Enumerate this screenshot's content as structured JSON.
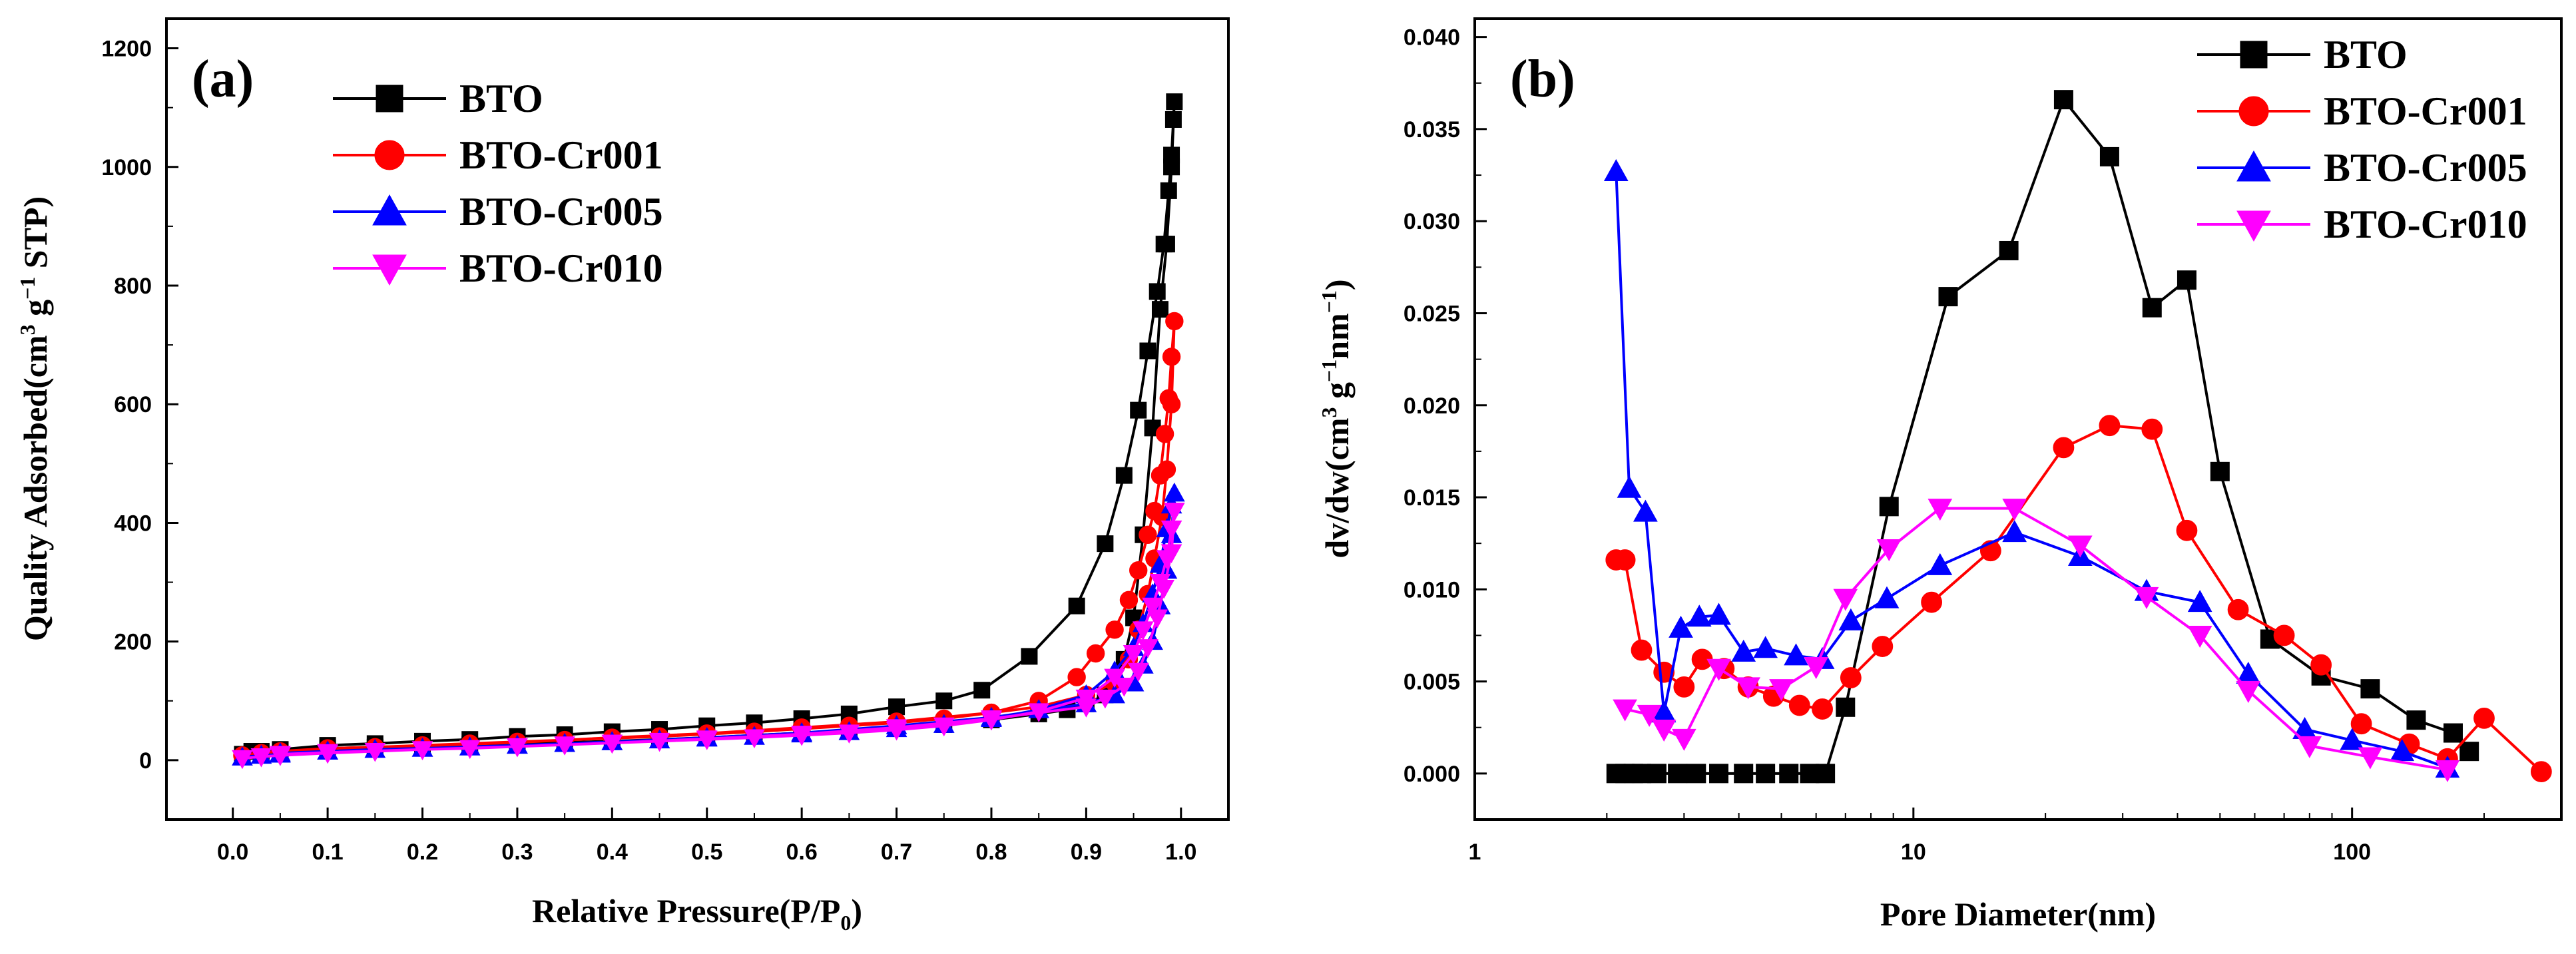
{
  "chart_data": [
    {
      "type": "line",
      "panel_label": "(a)",
      "xlabel": "Relative Pressure(P/P0)",
      "xlabel_main": "Relative Pressure(P/P",
      "xlabel_sub": "0",
      "xlabel_tail": ")",
      "ylabel": "Quality Adsorbed(cm3 g−1 STP)",
      "ylabel_main": "Quality Adsorbed(cm",
      "ylabel_sup1": "3",
      "ylabel_mid": " g",
      "ylabel_sup2": "−1",
      "ylabel_tail": " STP)",
      "xlim": [
        -0.07,
        1.05
      ],
      "ylim": [
        -100,
        1250
      ],
      "xscale": "linear",
      "xticks": [
        0.0,
        0.1,
        0.2,
        0.3,
        0.4,
        0.5,
        0.6,
        0.7,
        0.8,
        0.9,
        1.0
      ],
      "xtick_labels": [
        "0.0",
        "0.1",
        "0.2",
        "0.3",
        "0.4",
        "0.5",
        "0.6",
        "0.7",
        "0.8",
        "0.9",
        "1.0"
      ],
      "yticks": [
        0,
        200,
        400,
        600,
        800,
        1000,
        1200
      ],
      "ytick_labels": [
        "0",
        "200",
        "400",
        "600",
        "800",
        "1000",
        "1200"
      ],
      "legend_position": "top-left",
      "series": [
        {
          "name": "BTO",
          "color": "#000000",
          "marker": "square",
          "x": [
            0.01,
            0.03,
            0.05,
            0.1,
            0.15,
            0.2,
            0.25,
            0.3,
            0.35,
            0.4,
            0.45,
            0.5,
            0.55,
            0.6,
            0.65,
            0.7,
            0.75,
            0.79,
            0.84,
            0.89,
            0.92,
            0.94,
            0.955,
            0.965,
            0.975,
            0.982,
            0.987,
            0.99,
            0.992,
            0.993,
            0.99,
            0.985,
            0.978,
            0.97,
            0.96,
            0.95,
            0.94,
            0.93,
            0.92,
            0.9,
            0.88,
            0.85,
            0.8,
            0.75,
            0.7,
            0.65,
            0.6,
            0.55,
            0.5,
            0.45,
            0.4,
            0.35,
            0.3,
            0.25,
            0.2,
            0.15,
            0.1,
            0.05,
            0.02
          ],
          "y": [
            10,
            15,
            18,
            25,
            28,
            32,
            35,
            40,
            43,
            48,
            52,
            58,
            63,
            70,
            78,
            90,
            100,
            118,
            175,
            260,
            365,
            480,
            590,
            690,
            790,
            870,
            960,
            1020,
            1080,
            1110,
            1000,
            870,
            760,
            560,
            380,
            240,
            170,
            130,
            110,
            95,
            85,
            78,
            68,
            60,
            55,
            50,
            46,
            42,
            38,
            35,
            32,
            30,
            28,
            26,
            24,
            22,
            20,
            18,
            15
          ]
        },
        {
          "name": "BTO-Cr001",
          "color": "#ff0000",
          "marker": "circle",
          "x": [
            0.01,
            0.03,
            0.05,
            0.1,
            0.15,
            0.2,
            0.25,
            0.3,
            0.35,
            0.4,
            0.45,
            0.5,
            0.55,
            0.6,
            0.65,
            0.7,
            0.75,
            0.8,
            0.85,
            0.89,
            0.91,
            0.93,
            0.945,
            0.955,
            0.965,
            0.972,
            0.978,
            0.983,
            0.987,
            0.99,
            0.993,
            0.99,
            0.985,
            0.98,
            0.972,
            0.965,
            0.955,
            0.945,
            0.93,
            0.9,
            0.85,
            0.8,
            0.7,
            0.6,
            0.5,
            0.4,
            0.3,
            0.2,
            0.1,
            0.05
          ],
          "y": [
            8,
            12,
            15,
            20,
            22,
            25,
            28,
            31,
            34,
            37,
            40,
            44,
            48,
            53,
            58,
            63,
            70,
            80,
            100,
            140,
            180,
            220,
            270,
            320,
            380,
            420,
            480,
            550,
            610,
            680,
            740,
            600,
            490,
            410,
            340,
            280,
            220,
            170,
            130,
            110,
            90,
            80,
            65,
            55,
            45,
            38,
            30,
            24,
            18,
            14
          ]
        },
        {
          "name": "BTO-Cr005",
          "color": "#0000ff",
          "marker": "triangle-up",
          "x": [
            0.01,
            0.03,
            0.05,
            0.1,
            0.15,
            0.2,
            0.25,
            0.3,
            0.35,
            0.4,
            0.45,
            0.5,
            0.55,
            0.6,
            0.65,
            0.7,
            0.75,
            0.8,
            0.85,
            0.9,
            0.93,
            0.95,
            0.96,
            0.97,
            0.978,
            0.985,
            0.99,
            0.993,
            0.99,
            0.985,
            0.978,
            0.97,
            0.96,
            0.95,
            0.93,
            0.9,
            0.8,
            0.7,
            0.6,
            0.5,
            0.4,
            0.3,
            0.2,
            0.1,
            0.05
          ],
          "y": [
            5,
            8,
            10,
            15,
            18,
            20,
            22,
            25,
            28,
            31,
            34,
            37,
            40,
            44,
            48,
            53,
            60,
            70,
            85,
            110,
            150,
            190,
            230,
            280,
            330,
            390,
            430,
            450,
            380,
            320,
            260,
            200,
            160,
            130,
            110,
            95,
            72,
            58,
            46,
            38,
            31,
            25,
            20,
            15,
            12
          ]
        },
        {
          "name": "BTO-Cr010",
          "color": "#ff00ff",
          "marker": "triangle-down",
          "x": [
            0.01,
            0.03,
            0.05,
            0.1,
            0.15,
            0.2,
            0.25,
            0.3,
            0.35,
            0.4,
            0.45,
            0.5,
            0.55,
            0.6,
            0.65,
            0.7,
            0.75,
            0.8,
            0.85,
            0.9,
            0.93,
            0.95,
            0.96,
            0.97,
            0.978,
            0.985,
            0.99,
            0.993,
            0.99,
            0.982,
            0.975,
            0.965,
            0.955,
            0.94,
            0.92,
            0.9,
            0.8,
            0.7,
            0.6,
            0.5,
            0.4,
            0.3,
            0.2,
            0.1,
            0.05
          ],
          "y": [
            3,
            6,
            8,
            12,
            15,
            18,
            20,
            23,
            26,
            29,
            32,
            35,
            38,
            42,
            46,
            51,
            58,
            68,
            82,
            105,
            140,
            180,
            220,
            260,
            300,
            340,
            390,
            420,
            350,
            290,
            240,
            190,
            150,
            125,
            105,
            90,
            70,
            55,
            44,
            36,
            29,
            23,
            18,
            13,
            10
          ]
        }
      ]
    },
    {
      "type": "line",
      "panel_label": "(b)",
      "xlabel": "Pore Diameter(nm)",
      "ylabel": "dv/dw(cm3 g−1nm−1)",
      "ylabel_main": "dv/dw(cm",
      "ylabel_sup1": "3",
      "ylabel_mid": " g",
      "ylabel_sup2": "−1",
      "ylabel_mid2": "nm",
      "ylabel_sup3": "−1",
      "ylabel_tail": ")",
      "xscale": "log",
      "xlim": [
        1,
        300
      ],
      "ylim": [
        -0.0025,
        0.041
      ],
      "xticks": [
        1,
        10,
        100
      ],
      "xtick_labels": [
        "1",
        "10",
        "100"
      ],
      "yticks": [
        0.0,
        0.005,
        0.01,
        0.015,
        0.02,
        0.025,
        0.03,
        0.035,
        0.04
      ],
      "ytick_labels": [
        "0.000",
        "0.005",
        "0.010",
        "0.015",
        "0.020",
        "0.025",
        "0.030",
        "0.035",
        "0.040"
      ],
      "legend_position": "top-right",
      "series": [
        {
          "name": "BTO",
          "color": "#000000",
          "marker": "square",
          "x": [
            2.1,
            2.2,
            2.3,
            2.4,
            2.6,
            2.9,
            3.2,
            3.6,
            4.1,
            4.6,
            5.2,
            5.8,
            6.3,
            7.0,
            8.8,
            12,
            16.5,
            22,
            28,
            35,
            42,
            50,
            65,
            85,
            110,
            140,
            170,
            185
          ],
          "y": [
            0,
            0,
            0,
            0,
            0,
            0,
            0,
            0,
            0,
            0,
            0,
            0,
            0,
            0.0036,
            0.0145,
            0.0259,
            0.0284,
            0.0366,
            0.0335,
            0.0253,
            0.0268,
            0.0164,
            0.0073,
            0.0053,
            0.0046,
            0.0029,
            0.0022,
            0.0012
          ]
        },
        {
          "name": "BTO-Cr001",
          "color": "#ff0000",
          "marker": "circle",
          "x": [
            2.1,
            2.2,
            2.4,
            2.7,
            3.0,
            3.3,
            3.7,
            4.2,
            4.8,
            5.5,
            6.2,
            7.2,
            8.5,
            11,
            15,
            22,
            28,
            35,
            42,
            55,
            70,
            85,
            105,
            135,
            165,
            200,
            270
          ],
          "y": [
            0.0116,
            0.0116,
            0.0067,
            0.0055,
            0.0047,
            0.0062,
            0.0057,
            0.0047,
            0.0042,
            0.0037,
            0.0035,
            0.0052,
            0.0069,
            0.0093,
            0.0121,
            0.0177,
            0.0189,
            0.0187,
            0.0132,
            0.0089,
            0.0075,
            0.0059,
            0.0027,
            0.0016,
            0.0008,
            0.003,
            0.0001
          ]
        },
        {
          "name": "BTO-Cr005",
          "color": "#0000ff",
          "marker": "triangle-up",
          "x": [
            2.1,
            2.25,
            2.45,
            2.7,
            2.95,
            3.25,
            3.6,
            4.1,
            4.6,
            5.4,
            6.2,
            7.2,
            8.7,
            11.5,
            17,
            24,
            34,
            45,
            58,
            78,
            100,
            130,
            165
          ],
          "y": [
            0.0327,
            0.0155,
            0.0142,
            0.0033,
            0.0079,
            0.0085,
            0.0086,
            0.0066,
            0.0068,
            0.0064,
            0.0062,
            0.0083,
            0.0095,
            0.0113,
            0.0131,
            0.0118,
            0.0099,
            0.0093,
            0.0054,
            0.0024,
            0.0018,
            0.0012,
            0.0003
          ]
        },
        {
          "name": "BTO-Cr010",
          "color": "#ff00ff",
          "marker": "triangle-down",
          "x": [
            2.2,
            2.5,
            2.7,
            3.0,
            3.6,
            4.2,
            5.0,
            6.0,
            7.0,
            8.8,
            11.5,
            17,
            24,
            34,
            45,
            58,
            80,
            110,
            165
          ],
          "y": [
            0.0035,
            0.0032,
            0.0024,
            0.0019,
            0.0057,
            0.0047,
            0.0046,
            0.0058,
            0.0095,
            0.0122,
            0.0144,
            0.0144,
            0.0124,
            0.0096,
            0.0075,
            0.0045,
            0.0015,
            0.0009,
            0.0002
          ]
        }
      ]
    }
  ]
}
